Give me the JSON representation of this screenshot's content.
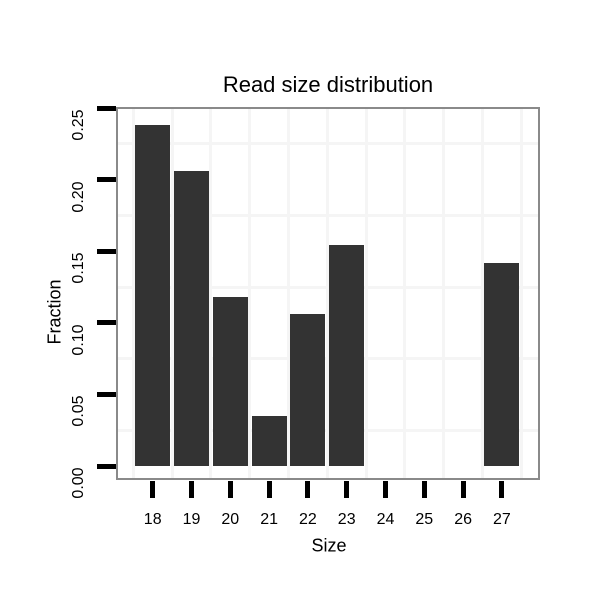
{
  "chart_data": {
    "type": "bar",
    "title": "Read size distribution",
    "xlabel": "Size",
    "ylabel": "Fraction",
    "categories": [
      "18",
      "19",
      "20",
      "21",
      "22",
      "23",
      "24",
      "25",
      "26",
      "27"
    ],
    "values": [
      0.238,
      0.206,
      0.118,
      0.035,
      0.106,
      0.154,
      0,
      0,
      0,
      0.142
    ],
    "ylim": [
      0,
      0.25
    ],
    "yticks": [
      {
        "value": 0.0,
        "label": "0.00"
      },
      {
        "value": 0.05,
        "label": "0.05"
      },
      {
        "value": 0.1,
        "label": "0.10"
      },
      {
        "value": 0.15,
        "label": "0.15"
      },
      {
        "value": 0.2,
        "label": "0.20"
      },
      {
        "value": 0.25,
        "label": "0.25"
      }
    ],
    "grid": {
      "horizontal_minor_values": [
        0.025,
        0.075,
        0.125,
        0.175,
        0.225
      ],
      "vertical_minor_between_categories": true,
      "major_gridlines_visible": false
    },
    "legend_visible": false,
    "style": {
      "bar_color": "#333333",
      "panel_border_color": "#8a8a8a",
      "gridline_color": "#f5f5f5",
      "tick_color": "#000000",
      "text_color": "#000000",
      "background_color": "#ffffff"
    }
  }
}
